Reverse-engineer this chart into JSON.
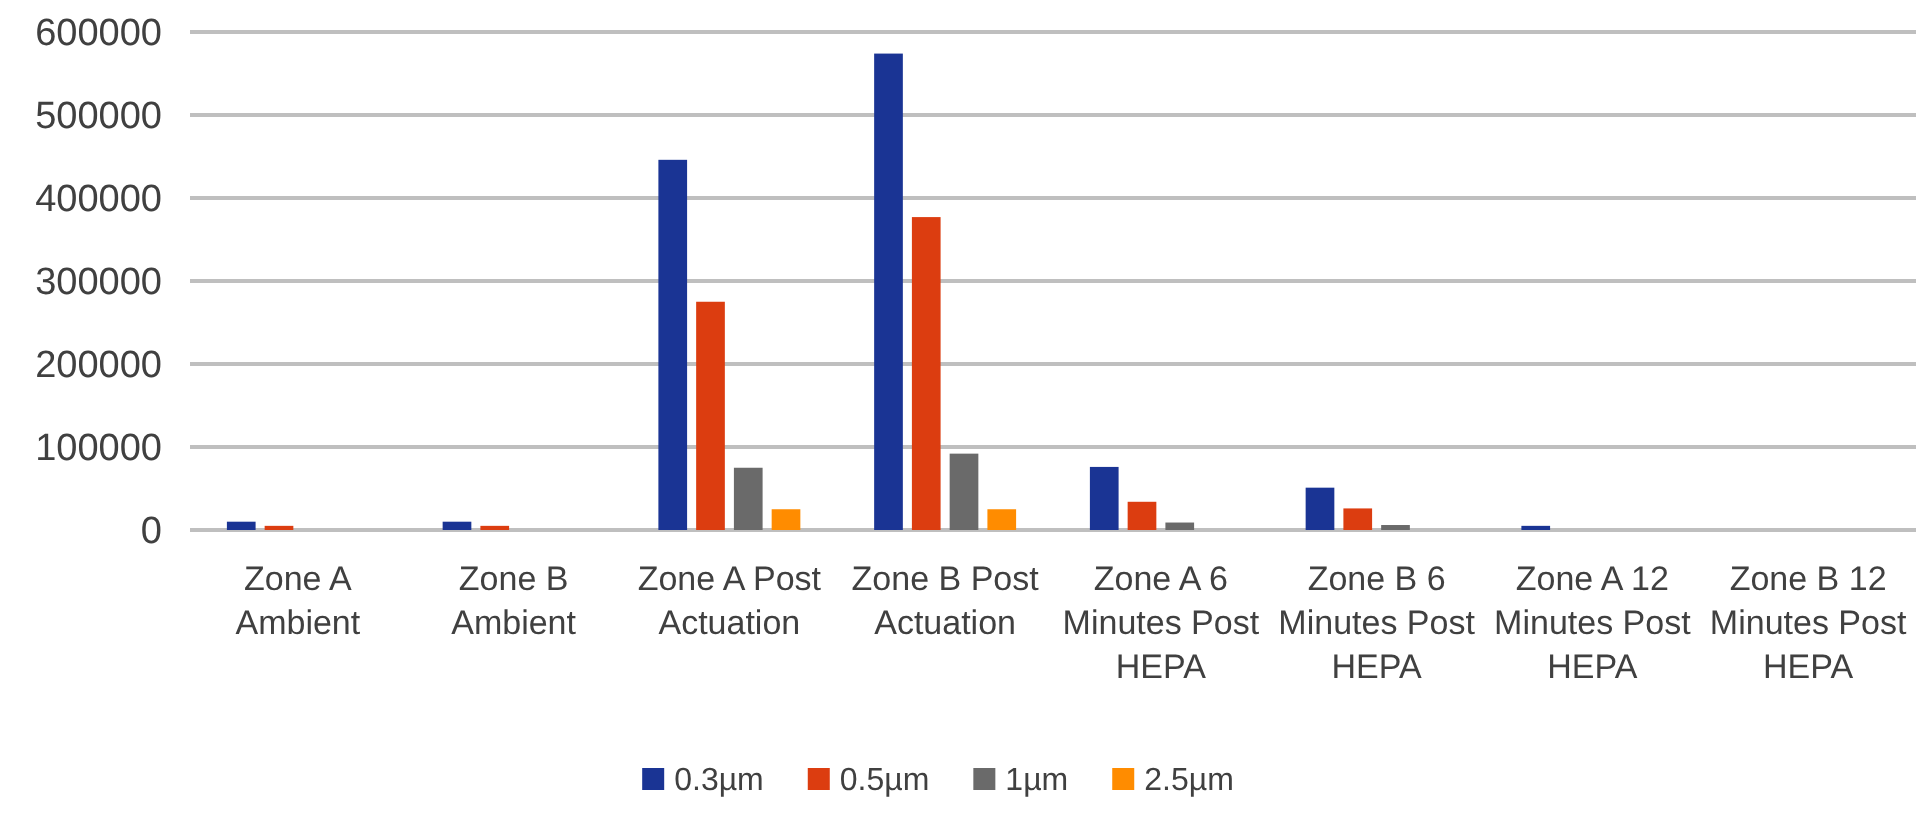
{
  "chart_data": {
    "type": "bar",
    "categories": [
      "Zone A Ambient",
      "Zone B Ambient",
      "Zone A Post Actuation",
      "Zone B Post Actuation",
      "Zone A 6 Minutes Post HEPA",
      "Zone B 6 Minutes Post HEPA",
      "Zone A 12 Minutes Post HEPA",
      "Zone B 12 Minutes Post HEPA"
    ],
    "series": [
      {
        "name": "0.3µm",
        "color": "#1a3494",
        "values": [
          10000,
          10000,
          446000,
          574000,
          76000,
          51000,
          5000,
          null
        ]
      },
      {
        "name": "0.5µm",
        "color": "#dc3d10",
        "values": [
          5000,
          5000,
          275000,
          377000,
          34000,
          26000,
          null,
          null
        ]
      },
      {
        "name": "1µm",
        "color": "#6a6a6a",
        "values": [
          null,
          null,
          75000,
          92000,
          9000,
          6000,
          null,
          null
        ]
      },
      {
        "name": "2.5µm",
        "color": "#ff8c00",
        "values": [
          null,
          null,
          25000,
          25000,
          null,
          null,
          null,
          null
        ]
      }
    ],
    "ylim": [
      0,
      600000
    ],
    "yticks": [
      0,
      100000,
      200000,
      300000,
      400000,
      500000,
      600000
    ],
    "grid": "y",
    "legend": "bottom"
  }
}
